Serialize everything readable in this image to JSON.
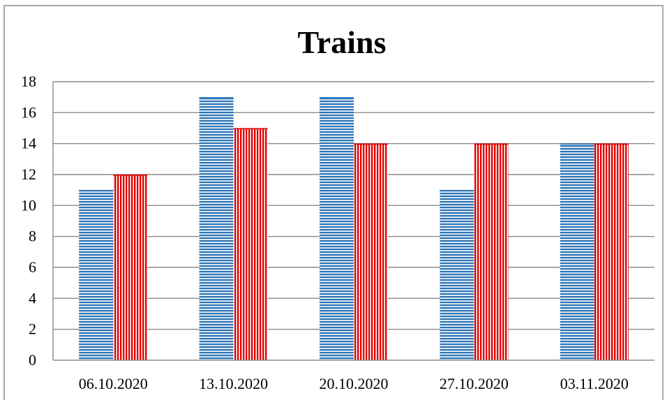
{
  "chart_data": {
    "type": "bar",
    "title": "Trains",
    "xlabel": "",
    "ylabel": "",
    "categories": [
      "06.10.2020",
      "13.10.2020",
      "20.10.2020",
      "27.10.2020",
      "03.11.2020"
    ],
    "series": [
      {
        "values": [
          11,
          17,
          17,
          11,
          14
        ],
        "color": "#2e75b6",
        "pattern": "horizontal-lines"
      },
      {
        "values": [
          12,
          15,
          14,
          14,
          14
        ],
        "color": "#e00000",
        "pattern": "vertical-lines"
      }
    ],
    "ylim": [
      0,
      18
    ],
    "yticks": [
      0,
      2,
      4,
      6,
      8,
      10,
      12,
      14,
      16,
      18
    ],
    "grid": true,
    "legend": "none"
  }
}
